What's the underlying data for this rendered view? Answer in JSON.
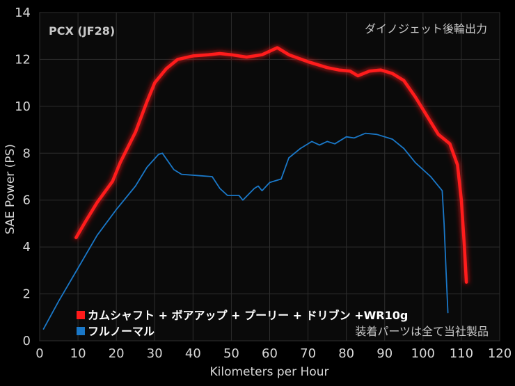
{
  "chart_data": {
    "type": "line",
    "title": "PCX (JF28)",
    "subtitle": "ダイノジェット後輪出力",
    "xlabel": "Kilometers per Hour",
    "ylabel": "SAE Power  (PS)",
    "xlim": [
      0,
      120
    ],
    "ylim": [
      0,
      14
    ],
    "xticks": [
      0,
      10,
      20,
      30,
      40,
      50,
      60,
      70,
      80,
      90,
      100,
      110,
      120
    ],
    "yticks": [
      0,
      2,
      4,
      6,
      8,
      10,
      12,
      14
    ],
    "grid": true,
    "legend_position": "bottom-left",
    "note": "装着パーツは全て当社製品",
    "series": [
      {
        "name": "カムシャフト + ボアアップ + プーリー + ドリブン +WR10g",
        "color": "#ff1a1a",
        "points": [
          [
            9.5,
            4.4
          ],
          [
            12,
            5.1
          ],
          [
            15,
            5.9
          ],
          [
            19,
            6.8
          ],
          [
            21,
            7.6
          ],
          [
            25,
            8.9
          ],
          [
            28,
            10.2
          ],
          [
            30,
            11.0
          ],
          [
            33,
            11.6
          ],
          [
            36,
            12.0
          ],
          [
            40,
            12.15
          ],
          [
            44,
            12.2
          ],
          [
            47,
            12.25
          ],
          [
            50,
            12.2
          ],
          [
            54,
            12.1
          ],
          [
            58,
            12.2
          ],
          [
            62,
            12.5
          ],
          [
            65,
            12.2
          ],
          [
            70,
            11.9
          ],
          [
            75,
            11.65
          ],
          [
            78,
            11.55
          ],
          [
            81,
            11.5
          ],
          [
            83,
            11.3
          ],
          [
            86,
            11.5
          ],
          [
            89,
            11.55
          ],
          [
            92,
            11.4
          ],
          [
            95,
            11.1
          ],
          [
            98,
            10.4
          ],
          [
            101,
            9.6
          ],
          [
            104,
            8.8
          ],
          [
            107,
            8.4
          ],
          [
            109,
            7.5
          ],
          [
            110,
            6.0
          ],
          [
            110.8,
            4.0
          ],
          [
            111.3,
            2.5
          ]
        ]
      },
      {
        "name": "フルノーマル",
        "color": "#1a78c8",
        "points": [
          [
            1,
            0.5
          ],
          [
            5,
            1.7
          ],
          [
            10,
            3.1
          ],
          [
            15,
            4.5
          ],
          [
            20,
            5.6
          ],
          [
            25,
            6.6
          ],
          [
            28,
            7.4
          ],
          [
            31,
            7.95
          ],
          [
            32,
            8.0
          ],
          [
            35,
            7.3
          ],
          [
            37,
            7.1
          ],
          [
            41,
            7.05
          ],
          [
            45,
            7.0
          ],
          [
            47,
            6.5
          ],
          [
            49,
            6.2
          ],
          [
            52,
            6.2
          ],
          [
            53,
            6.0
          ],
          [
            56,
            6.5
          ],
          [
            57,
            6.6
          ],
          [
            58,
            6.4
          ],
          [
            60,
            6.75
          ],
          [
            63,
            6.9
          ],
          [
            65,
            7.8
          ],
          [
            68,
            8.2
          ],
          [
            71,
            8.5
          ],
          [
            73,
            8.35
          ],
          [
            75,
            8.5
          ],
          [
            77,
            8.4
          ],
          [
            80,
            8.7
          ],
          [
            82,
            8.65
          ],
          [
            85,
            8.85
          ],
          [
            88,
            8.8
          ],
          [
            92,
            8.6
          ],
          [
            95,
            8.2
          ],
          [
            98,
            7.6
          ],
          [
            102,
            7.0
          ],
          [
            105,
            6.4
          ],
          [
            105.5,
            5.0
          ],
          [
            106,
            3.0
          ],
          [
            106.5,
            1.2
          ]
        ]
      }
    ]
  }
}
